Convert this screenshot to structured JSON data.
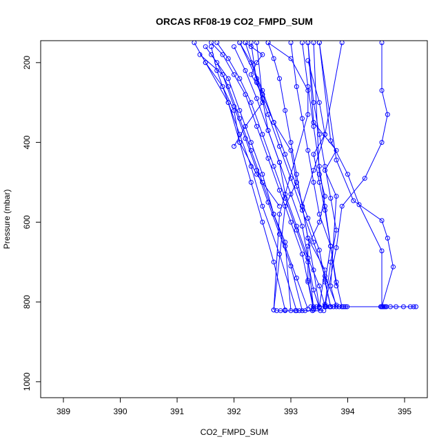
{
  "chart_data": {
    "type": "line",
    "title": "ORCAS RF08-19 CO2_FMPD_SUM",
    "xlabel": "CO2_FMPD_SUM",
    "ylabel": "Pressure (mbar)",
    "xlim": [
      388.6,
      395.4
    ],
    "ylim": [
      1040,
      145
    ],
    "y_axis_reversed": true,
    "x_ticks": [
      389,
      390,
      391,
      392,
      393,
      394,
      395
    ],
    "y_ticks": [
      200,
      400,
      600,
      800,
      1000
    ],
    "grid": false,
    "legend": "none",
    "color": "#0000ff",
    "markers": "open-circle",
    "series": [
      {
        "x": [
          393.5,
          393.4,
          393.3,
          393.1,
          392.9,
          392.7,
          392.5,
          392.3,
          392.1,
          391.9,
          391.7
        ],
        "y": [
          815,
          770,
          700,
          620,
          540,
          460,
          380,
          300,
          240,
          190,
          150
        ]
      },
      {
        "x": [
          393.6,
          393.5,
          393.3,
          393.2,
          393.0,
          392.8,
          392.6,
          392.4,
          392.2,
          392.0
        ],
        "y": [
          810,
          760,
          690,
          610,
          530,
          450,
          370,
          290,
          220,
          160
        ]
      },
      {
        "x": [
          393.4,
          393.3,
          393.2,
          393.0,
          392.8,
          392.6,
          392.4,
          392.2,
          392.0,
          391.8,
          391.6
        ],
        "y": [
          820,
          750,
          680,
          600,
          520,
          440,
          360,
          280,
          230,
          180,
          150
        ]
      },
      {
        "x": [
          393.7,
          393.6,
          393.5,
          393.3,
          393.1,
          392.9,
          392.7,
          392.5,
          392.3,
          392.1
        ],
        "y": [
          812,
          745,
          670,
          590,
          510,
          430,
          350,
          270,
          200,
          150
        ]
      },
      {
        "x": [
          393.3,
          393.1,
          392.9,
          392.7,
          392.5,
          392.3,
          392.1,
          391.9,
          391.7,
          391.5
        ],
        "y": [
          818,
          740,
          660,
          580,
          500,
          420,
          340,
          260,
          200,
          160
        ]
      },
      {
        "x": [
          393.8,
          393.6,
          393.4,
          393.2,
          393.0,
          392.8,
          392.6,
          392.4,
          392.3
        ],
        "y": [
          808,
          735,
          650,
          570,
          490,
          410,
          330,
          250,
          150
        ]
      },
      {
        "x": [
          393.2,
          393.0,
          392.8,
          392.6,
          392.4,
          392.2,
          392.0,
          391.8,
          391.4
        ],
        "y": [
          822,
          710,
          630,
          550,
          470,
          390,
          310,
          230,
          180
        ]
      },
      {
        "x": [
          393.5,
          393.4,
          393.3,
          393.2,
          393.1,
          393.0,
          392.9,
          392.8,
          392.7,
          392.6
        ],
        "y": [
          814,
          720,
          640,
          560,
          480,
          400,
          320,
          240,
          190,
          150
        ]
      },
      {
        "x": [
          393.9,
          393.8,
          393.7,
          393.5,
          393.4,
          393.3,
          393.2,
          393.1,
          393.0
        ],
        "y": [
          812,
          750,
          660,
          580,
          500,
          420,
          340,
          260,
          150
        ]
      },
      {
        "x": [
          393.6,
          393.7,
          393.8,
          393.7,
          393.6,
          393.5,
          393.4,
          393.3
        ],
        "y": [
          806,
          700,
          620,
          540,
          460,
          380,
          300,
          150
        ]
      },
      {
        "x": [
          393.1,
          392.8,
          392.5,
          392.3,
          392.1,
          391.9,
          391.7,
          391.6
        ],
        "y": [
          822,
          680,
          560,
          460,
          380,
          300,
          220,
          160
        ]
      },
      {
        "x": [
          393.4,
          393.3,
          393.1,
          392.9,
          392.8,
          392.6,
          392.5,
          392.4
        ],
        "y": [
          816,
          690,
          610,
          530,
          450,
          370,
          290,
          150
        ]
      },
      {
        "x": [
          393.8,
          393.7,
          393.6,
          393.5,
          393.4,
          393.3,
          393.2
        ],
        "y": [
          760,
          660,
          560,
          460,
          360,
          260,
          150
        ]
      },
      {
        "x": [
          392.9,
          392.7,
          392.5,
          392.3,
          392.1,
          391.9,
          391.5
        ],
        "y": [
          820,
          700,
          600,
          500,
          400,
          300,
          200
        ]
      },
      {
        "x": [
          393.0,
          392.9,
          392.7,
          392.5,
          392.3,
          392.1,
          391.9,
          391.6
        ],
        "y": [
          822,
          650,
          580,
          480,
          400,
          320,
          240,
          180
        ]
      },
      {
        "x": [
          393.7,
          393.6,
          393.7,
          393.6,
          393.5,
          393.4,
          393.6,
          393.5,
          393.3
        ],
        "y": [
          812,
          750,
          660,
          570,
          500,
          430,
          380,
          300,
          195
        ]
      },
      {
        "x": [
          393.6,
          393.8,
          393.9,
          394.3,
          394.6,
          394.7,
          394.6,
          394.6
        ],
        "y": [
          812,
          664,
          560,
          490,
          400,
          330,
          270,
          150
        ]
      },
      {
        "x": [
          394.6,
          394.8,
          394.7,
          394.6,
          394.1,
          393.8,
          393.5
        ],
        "y": [
          812,
          712,
          640,
          596,
          546,
          444,
          150
        ]
      },
      {
        "x": [
          394.6,
          394.6,
          394.2,
          394.0,
          393.7,
          393.5
        ],
        "y": [
          812,
          672,
          556,
          480,
          396,
          150
        ]
      },
      {
        "x": [
          392.8,
          392.4,
          392.1,
          392.0,
          391.8,
          391.5,
          391.3
        ],
        "y": [
          560,
          480,
          400,
          320,
          260,
          200,
          150
        ]
      },
      {
        "x": [
          392.7,
          392.9,
          393.1,
          393.0,
          392.7,
          392.5,
          392.2
        ],
        "y": [
          820,
          560,
          500,
          420,
          350,
          280,
          150
        ]
      },
      {
        "x": [
          393.5,
          393.6,
          393.3,
          393.2,
          393.4,
          393.6,
          393.9
        ],
        "y": [
          812,
          720,
          640,
          560,
          470,
          380,
          150
        ]
      },
      {
        "x": [
          393.4,
          393.3,
          393.3,
          393.5,
          393.6,
          393.5,
          393.4
        ],
        "y": [
          812,
          746,
          660,
          600,
          535,
          480,
          150
        ]
      },
      {
        "x": [
          393.8,
          393.7,
          393.8,
          393.6,
          393.8,
          393.4,
          393.3
        ],
        "y": [
          812,
          760,
          535,
          470,
          420,
          350,
          150
        ]
      },
      {
        "x": [
          392.5,
          392.3,
          392.4,
          392.5,
          392.3,
          392.2
        ],
        "y": [
          280,
          230,
          200,
          180,
          160,
          150
        ]
      },
      {
        "x": [
          392.0,
          392.2,
          392.5,
          392.4,
          392.1
        ],
        "y": [
          410,
          360,
          300,
          240,
          150
        ]
      },
      {
        "x": [
          392.7,
          392.8,
          393.3,
          393.3,
          393.0,
          392.6
        ],
        "y": [
          820,
          580,
          330,
          270,
          190,
          150
        ]
      }
    ],
    "surface_points": {
      "y": 822,
      "x": [
        392.75,
        392.82,
        392.9,
        393.08,
        393.15,
        393.25,
        393.38,
        393.52,
        393.58
      ]
    },
    "surface_points_2": {
      "y": 812,
      "x": [
        393.35,
        393.45,
        393.62,
        393.68,
        393.75,
        393.85,
        393.9,
        393.93,
        393.96,
        393.99,
        394.58,
        394.6,
        394.62,
        394.64,
        394.66,
        394.68,
        394.75,
        394.85,
        394.98,
        395.1,
        395.16,
        395.2
      ]
    }
  }
}
